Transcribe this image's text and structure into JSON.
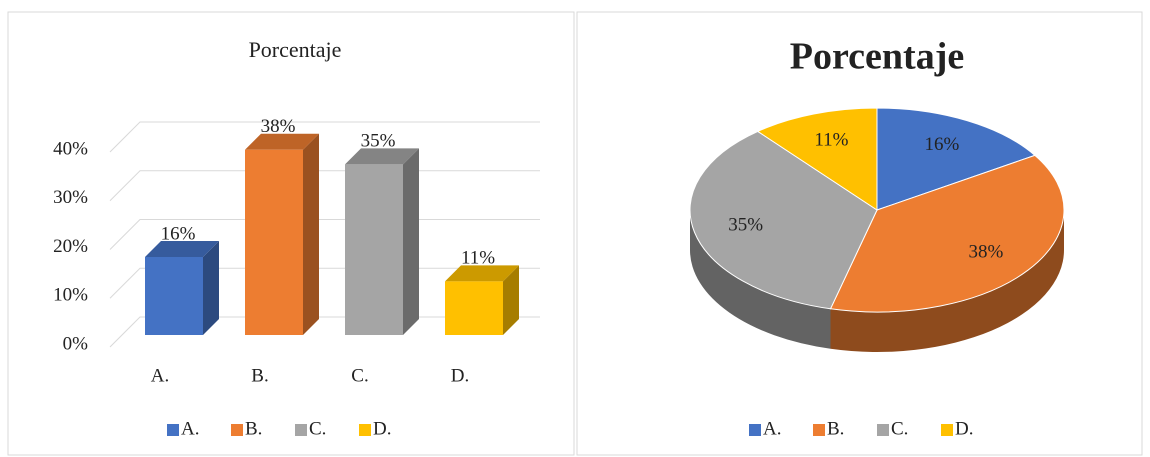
{
  "chart_data": [
    {
      "type": "bar",
      "title": "Porcentaje",
      "categories": [
        "A.",
        "B.",
        "C.",
        "D."
      ],
      "values": [
        16,
        38,
        35,
        11
      ],
      "value_labels": [
        "16%",
        "38%",
        "35%",
        "11%"
      ],
      "colors": [
        "#4472c4",
        "#ed7d31",
        "#a5a5a5",
        "#ffc000"
      ],
      "ylim": [
        0,
        40
      ],
      "yticks": [
        {
          "value": 0,
          "label": "0%"
        },
        {
          "value": 10,
          "label": "10%"
        },
        {
          "value": 20,
          "label": "20%"
        },
        {
          "value": 30,
          "label": "30%"
        },
        {
          "value": 40,
          "label": "40%"
        }
      ],
      "grid": true,
      "legend": "bottom"
    },
    {
      "type": "pie",
      "title": "Porcentaje",
      "categories": [
        "A.",
        "B.",
        "C.",
        "D."
      ],
      "values": [
        16,
        38,
        35,
        11
      ],
      "value_labels": [
        "16%",
        "38%",
        "35%",
        "11%"
      ],
      "colors": [
        "#4472c4",
        "#ed7d31",
        "#a5a5a5",
        "#ffc000"
      ],
      "legend": "bottom"
    }
  ]
}
